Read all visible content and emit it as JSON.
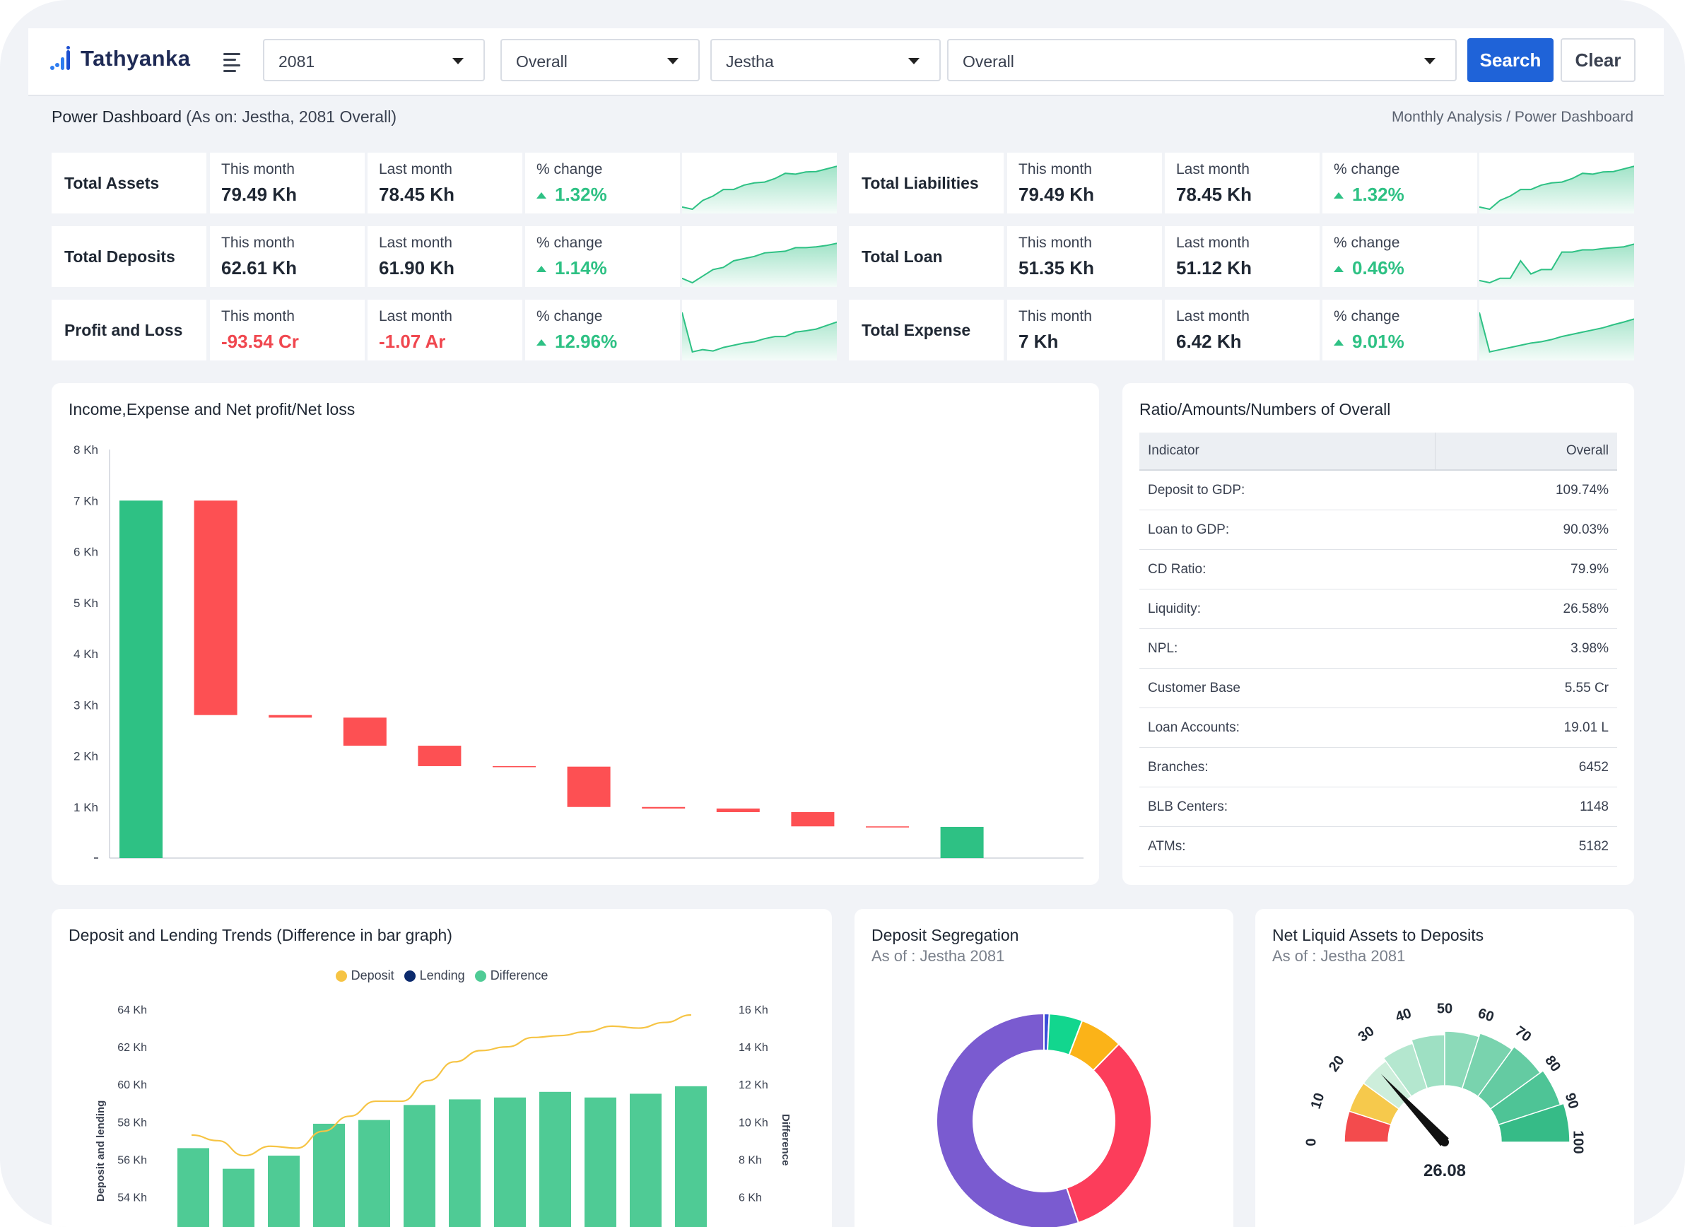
{
  "app": {
    "name": "Tathyanka"
  },
  "filters": {
    "year": "2081",
    "scope1": "Overall",
    "month": "Jestha",
    "scope2": "Overall",
    "search_label": "Search",
    "clear_label": "Clear"
  },
  "page": {
    "title": "Power Dashboard",
    "subtitle": "(As on: Jestha, 2081 Overall)",
    "breadcrumb": "Monthly Analysis / Power Dashboard"
  },
  "kpis": [
    {
      "name": "Total Assets",
      "this_label": "This month",
      "this_value": "79.49 Kh",
      "last_label": "Last month",
      "last_value": "78.45 Kh",
      "change_label": "% change",
      "change_value": "1.32%",
      "trend": [
        0.05,
        0.0,
        0.2,
        0.3,
        0.45,
        0.45,
        0.55,
        0.6,
        0.62,
        0.7,
        0.82,
        0.8,
        0.85,
        0.86,
        0.92,
        0.98
      ]
    },
    {
      "name": "Total Liabilities",
      "this_label": "This month",
      "this_value": "79.49 Kh",
      "last_label": "Last month",
      "last_value": "78.45 Kh",
      "change_label": "% change",
      "change_value": "1.32%",
      "trend": [
        0.05,
        0.0,
        0.2,
        0.3,
        0.45,
        0.45,
        0.55,
        0.6,
        0.62,
        0.7,
        0.82,
        0.8,
        0.85,
        0.86,
        0.92,
        0.98
      ]
    },
    {
      "name": "Total Deposits",
      "this_label": "This month",
      "this_value": "62.61 Kh",
      "last_label": "Last month",
      "last_value": "61.90 Kh",
      "change_label": "% change",
      "change_value": "1.14%",
      "trend": [
        0.1,
        0.0,
        0.15,
        0.3,
        0.35,
        0.5,
        0.55,
        0.6,
        0.68,
        0.7,
        0.72,
        0.8,
        0.8,
        0.82,
        0.85,
        0.9
      ]
    },
    {
      "name": "Total Loan",
      "this_label": "This month",
      "this_value": "51.35 Kh",
      "last_label": "Last month",
      "last_value": "51.12 Kh",
      "change_label": "% change",
      "change_value": "0.46%",
      "trend": [
        0.05,
        0.0,
        0.1,
        0.1,
        0.5,
        0.2,
        0.3,
        0.3,
        0.7,
        0.7,
        0.75,
        0.75,
        0.78,
        0.8,
        0.82,
        0.88
      ]
    },
    {
      "name": "Profit and Loss",
      "this_label": "This month",
      "this_value": "-93.54 Cr",
      "this_negative": true,
      "last_label": "Last month",
      "last_value": "-1.07 Ar",
      "last_negative": true,
      "change_label": "% change",
      "change_value": "12.96%",
      "trend": [
        1.0,
        0.1,
        0.15,
        0.12,
        0.2,
        0.25,
        0.3,
        0.33,
        0.4,
        0.45,
        0.45,
        0.55,
        0.58,
        0.62,
        0.7,
        0.78
      ]
    },
    {
      "name": "Total Expense",
      "this_label": "This month",
      "this_value": "7 Kh",
      "last_label": "Last month",
      "last_value": "6.42 Kh",
      "change_label": "% change",
      "change_value": "9.01%",
      "trend": [
        1.0,
        0.1,
        0.15,
        0.2,
        0.25,
        0.3,
        0.33,
        0.38,
        0.45,
        0.5,
        0.55,
        0.6,
        0.65,
        0.72,
        0.78,
        0.85
      ]
    }
  ],
  "income_chart": {
    "title": "Income,Expense and Net profit/Net loss",
    "chart_data": {
      "type": "waterfall",
      "ylim": [
        0,
        8
      ],
      "y_ticks": [
        "8 Kh",
        "7 Kh",
        "6 Kh",
        "5 Kh",
        "4 Kh",
        "3 Kh",
        "2 Kh",
        "1 Kh"
      ],
      "bars": [
        {
          "low": 0,
          "high": 7.0,
          "color": "#2ec184"
        },
        {
          "low": 2.8,
          "high": 7.0,
          "color": "#fd5053"
        },
        {
          "low": 2.75,
          "high": 2.8,
          "color": "#fd5053"
        },
        {
          "low": 2.2,
          "high": 2.75,
          "color": "#fd5053"
        },
        {
          "low": 1.8,
          "high": 2.2,
          "color": "#fd5053"
        },
        {
          "low": 1.79,
          "high": 1.8,
          "color": "#fd5053"
        },
        {
          "low": 1.0,
          "high": 1.79,
          "color": "#fd5053"
        },
        {
          "low": 0.97,
          "high": 1.0,
          "color": "#fd5053"
        },
        {
          "low": 0.9,
          "high": 0.97,
          "color": "#fd5053"
        },
        {
          "low": 0.62,
          "high": 0.9,
          "color": "#fd5053"
        },
        {
          "low": 0.61,
          "high": 0.62,
          "color": "#fd5053"
        },
        {
          "low": 0,
          "high": 0.61,
          "color": "#2ec184"
        }
      ]
    }
  },
  "ratio_table": {
    "title": "Ratio/Amounts/Numbers of Overall",
    "col_indicator": "Indicator",
    "col_overall": "Overall",
    "rows": [
      {
        "label": "Deposit to GDP:",
        "value": "109.74%"
      },
      {
        "label": "Loan to GDP:",
        "value": "90.03%"
      },
      {
        "label": "CD Ratio:",
        "value": "79.9%"
      },
      {
        "label": "Liquidity:",
        "value": "26.58%"
      },
      {
        "label": "NPL:",
        "value": "3.98%"
      },
      {
        "label": "Customer Base",
        "value": "5.55 Cr"
      },
      {
        "label": "Loan Accounts:",
        "value": "19.01 L"
      },
      {
        "label": "Branches:",
        "value": "6452"
      },
      {
        "label": "BLB Centers:",
        "value": "1148"
      },
      {
        "label": "ATMs:",
        "value": "5182"
      }
    ]
  },
  "trend_chart": {
    "title": "Deposit and Lending Trends (Difference in bar graph)",
    "chart_data": {
      "type": "bar+line",
      "legend": [
        {
          "name": "Deposit",
          "color": "#f6c444"
        },
        {
          "name": "Lending",
          "color": "#0c2a6d"
        },
        {
          "name": "Difference",
          "color": "#4fcb95"
        }
      ],
      "left_axis": {
        "label": "Deposit and lending",
        "ticks": [
          "64 Kh",
          "62 Kh",
          "60 Kh",
          "58 Kh",
          "56 Kh",
          "54 Kh"
        ],
        "range": [
          53,
          64
        ]
      },
      "right_axis": {
        "label": "Difference",
        "ticks": [
          "16 Kh",
          "14 Kh",
          "12 Kh",
          "10 Kh",
          "8 Kh",
          "6 Kh"
        ],
        "range": [
          5,
          16
        ]
      },
      "difference": [
        8.6,
        7.5,
        8.2,
        9.9,
        10.1,
        10.9,
        11.2,
        11.3,
        11.6,
        11.3,
        11.5,
        11.9
      ],
      "deposit": [
        57.3,
        57.0,
        56.2,
        56.7,
        56.6,
        57.5,
        58.3,
        59.1,
        59.1,
        60.2,
        61.2,
        61.8,
        62.0,
        62.5,
        62.6,
        62.8,
        63.1,
        63.0,
        63.3,
        63.7
      ]
    }
  },
  "segregation": {
    "title": "Deposit Segregation",
    "as_of": "As of : Jestha 2081",
    "chart_data": {
      "type": "pie",
      "slices": [
        {
          "value": 0.8,
          "color": "#3b4fd8"
        },
        {
          "value": 5.0,
          "color": "#12d68e"
        },
        {
          "value": 6.5,
          "color": "#fbb318"
        },
        {
          "value": 32.5,
          "color": "#fc3d5b"
        },
        {
          "value": 55.2,
          "color": "#7a5bd0"
        }
      ]
    }
  },
  "gauge": {
    "title": "Net Liquid Assets to Deposits",
    "as_of": "As of : Jestha 2081",
    "value": 26.08,
    "value_text": "26.08",
    "ticks": [
      "0",
      "10",
      "20",
      "30",
      "40",
      "50",
      "60",
      "70",
      "80",
      "90",
      "100"
    ]
  }
}
